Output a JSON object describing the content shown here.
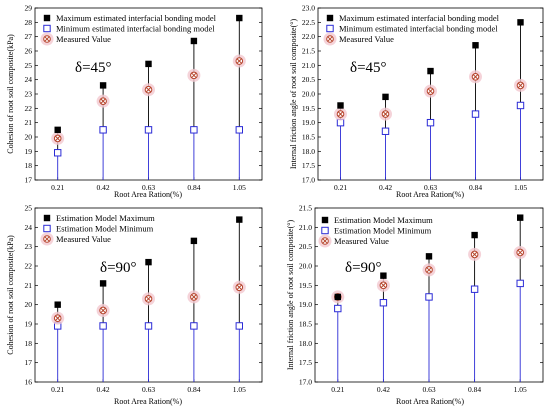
{
  "colors": {
    "max_marker": "#000000",
    "min_marker": "#2b2bd6",
    "measured_marker": "#b5432a",
    "measured_halo": "#f3c8cf",
    "stem_upper": "#000000",
    "stem_lower": "#2b2bd6"
  },
  "chart_data": [
    {
      "type": "scatter",
      "panel": "top-left",
      "annotation": "δ=45°",
      "xlabel": "Root Area Ration(%)",
      "ylabel": "Cohesion of root soil composite(kPa)",
      "categories": [
        "0.21",
        "0.42",
        "0.63",
        "0.84",
        "1.05"
      ],
      "ylim": [
        17,
        29
      ],
      "yticks": [
        17,
        18,
        19,
        20,
        21,
        22,
        23,
        24,
        25,
        26,
        27,
        28,
        29
      ],
      "legend_position": "top-left",
      "series": [
        {
          "name": "Maximum estimated interfacial bonding model",
          "marker": "filled-square",
          "values": [
            20.5,
            23.6,
            25.1,
            26.7,
            28.3
          ]
        },
        {
          "name": "Minimum estimated interfacial bonding model",
          "marker": "open-square",
          "values": [
            18.9,
            20.5,
            20.5,
            20.5,
            20.5
          ]
        },
        {
          "name": "Measured Value",
          "marker": "x-circle",
          "values": [
            19.9,
            22.5,
            23.3,
            24.3,
            25.3
          ]
        }
      ]
    },
    {
      "type": "scatter",
      "panel": "top-right",
      "annotation": "δ=45°",
      "xlabel": "Root Area Ration(%)",
      "ylabel": "Internal friction angle of root soil composite(°)",
      "categories": [
        "0.21",
        "0.42",
        "0.63",
        "0.84",
        "1.05"
      ],
      "ylim": [
        17.0,
        23.0
      ],
      "yticks": [
        "17.0",
        "17.5",
        "18.0",
        "18.5",
        "19.0",
        "19.5",
        "20.0",
        "20.5",
        "21.0",
        "21.5",
        "22.0",
        "22.5",
        "23.0"
      ],
      "legend_position": "top-left",
      "series": [
        {
          "name": "Maximum estimated interfacial bonding model",
          "marker": "filled-square",
          "values": [
            19.6,
            19.9,
            20.8,
            21.7,
            22.5
          ]
        },
        {
          "name": "Minimum estimated interfacial bonding model",
          "marker": "open-square",
          "values": [
            19.0,
            18.7,
            19.0,
            19.3,
            19.6
          ]
        },
        {
          "name": "Measured Value",
          "marker": "x-circle",
          "values": [
            19.3,
            19.3,
            20.1,
            20.6,
            20.3
          ]
        }
      ]
    },
    {
      "type": "scatter",
      "panel": "bottom-left",
      "annotation": "δ=90°",
      "xlabel": "Root Area Ration(%)",
      "ylabel": "Cohesion of root soil composite(kPa)",
      "categories": [
        "0.21",
        "0.42",
        "0.63",
        "0.84",
        "1.05"
      ],
      "ylim": [
        16,
        25
      ],
      "yticks": [
        16,
        17,
        18,
        19,
        20,
        21,
        22,
        23,
        24,
        25
      ],
      "legend_position": "top-left",
      "series": [
        {
          "name": "Estimation Model Maximum",
          "marker": "filled-square",
          "values": [
            20.0,
            21.1,
            22.2,
            23.3,
            24.4
          ]
        },
        {
          "name": "Estimation Model Minimum",
          "marker": "open-square",
          "values": [
            18.9,
            18.9,
            18.9,
            18.9,
            18.9
          ]
        },
        {
          "name": "Measured Value",
          "marker": "x-circle",
          "values": [
            19.3,
            19.7,
            20.3,
            20.4,
            20.9
          ]
        }
      ]
    },
    {
      "type": "scatter",
      "panel": "bottom-right",
      "annotation": "δ=90°",
      "xlabel": "Root Area Ration(%)",
      "ylabel": "Internal friction angle of root soil composite(°)",
      "categories": [
        "0.21",
        "0.42",
        "0.63",
        "0.84",
        "1.05"
      ],
      "ylim": [
        17.0,
        21.5
      ],
      "yticks": [
        "17.0",
        "17.5",
        "18.0",
        "18.5",
        "19.0",
        "19.5",
        "20.0",
        "20.5",
        "21.0",
        "21.5"
      ],
      "legend_position": "top-left",
      "series": [
        {
          "name": "Estimation Model Maximum",
          "marker": "filled-square",
          "values": [
            19.2,
            19.75,
            20.25,
            20.8,
            21.25
          ]
        },
        {
          "name": "Estimation Model Minimum",
          "marker": "open-square",
          "values": [
            18.9,
            19.05,
            19.2,
            19.4,
            19.55
          ]
        },
        {
          "name": "Measured Value",
          "marker": "x-circle",
          "values": [
            19.2,
            19.5,
            19.9,
            20.3,
            20.35
          ]
        }
      ]
    }
  ]
}
